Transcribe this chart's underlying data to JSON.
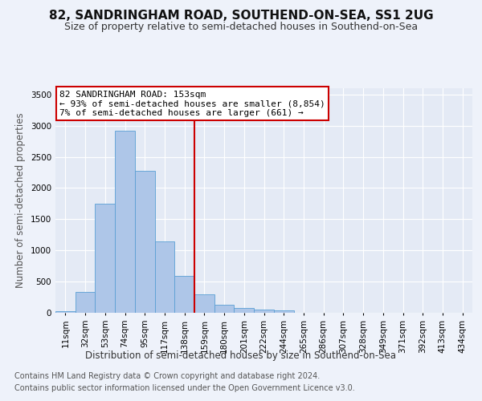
{
  "title": "82, SANDRINGHAM ROAD, SOUTHEND-ON-SEA, SS1 2UG",
  "subtitle": "Size of property relative to semi-detached houses in Southend-on-Sea",
  "xlabel_bottom": "Distribution of semi-detached houses by size in Southend-on-Sea",
  "ylabel": "Number of semi-detached properties",
  "footer_line1": "Contains HM Land Registry data © Crown copyright and database right 2024.",
  "footer_line2": "Contains public sector information licensed under the Open Government Licence v3.0.",
  "bar_labels": [
    "11sqm",
    "32sqm",
    "53sqm",
    "74sqm",
    "95sqm",
    "117sqm",
    "138sqm",
    "159sqm",
    "180sqm",
    "201sqm",
    "222sqm",
    "244sqm",
    "265sqm",
    "286sqm",
    "307sqm",
    "328sqm",
    "349sqm",
    "371sqm",
    "392sqm",
    "413sqm",
    "434sqm"
  ],
  "bar_values": [
    30,
    340,
    1750,
    2920,
    2280,
    1150,
    590,
    300,
    130,
    75,
    55,
    40,
    0,
    0,
    0,
    0,
    0,
    0,
    0,
    0,
    0
  ],
  "bar_color": "#aec6e8",
  "bar_edge_color": "#5a9fd4",
  "highlight_line_color": "#cc0000",
  "annotation_text": "82 SANDRINGHAM ROAD: 153sqm\n← 93% of semi-detached houses are smaller (8,854)\n7% of semi-detached houses are larger (661) →",
  "annotation_box_color": "#ffffff",
  "annotation_box_edge": "#cc0000",
  "ylim": [
    0,
    3600
  ],
  "yticks": [
    0,
    500,
    1000,
    1500,
    2000,
    2500,
    3000,
    3500
  ],
  "background_color": "#eef2fa",
  "plot_bg_color": "#e4eaf5",
  "grid_color": "#ffffff",
  "title_fontsize": 11,
  "subtitle_fontsize": 9,
  "axis_label_fontsize": 8.5,
  "tick_fontsize": 7.5,
  "footer_fontsize": 7,
  "annotation_fontsize": 8
}
